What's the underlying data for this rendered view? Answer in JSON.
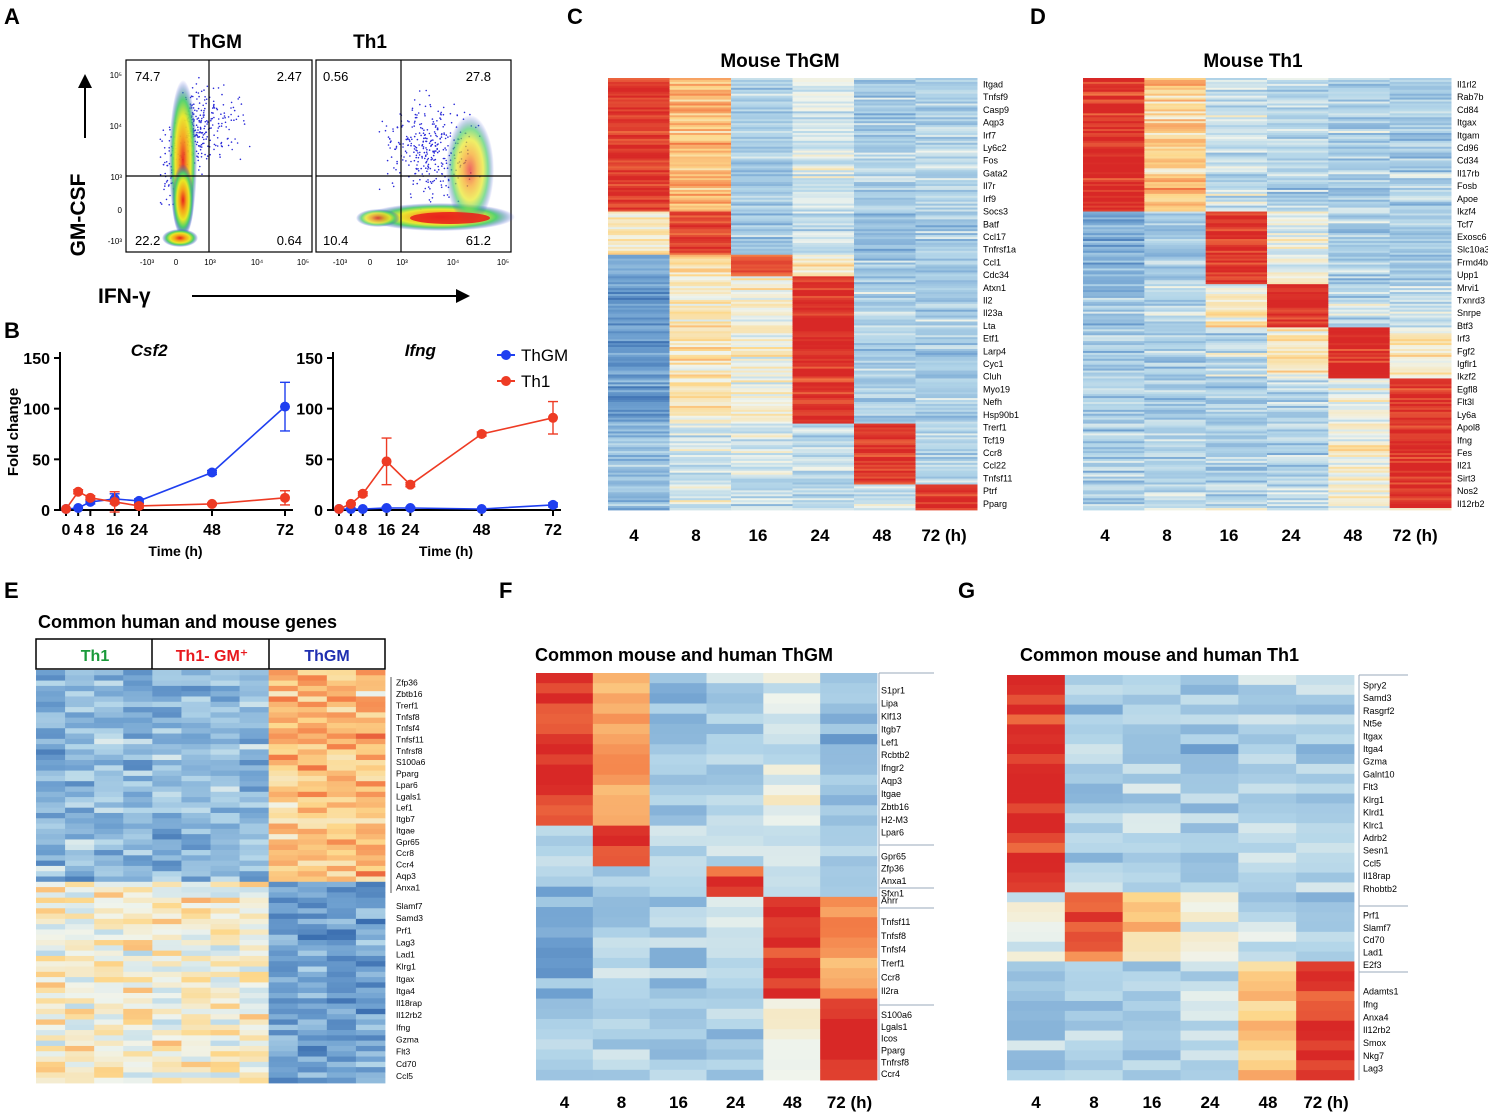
{
  "panels": {
    "A": {
      "letter": "A",
      "plots": [
        {
          "title": "ThGM",
          "q": [
            "74.7",
            "2.47",
            "22.2",
            "0.64"
          ]
        },
        {
          "title": "Th1",
          "q": [
            "0.56",
            "27.8",
            "10.4",
            "61.2"
          ]
        }
      ],
      "ylabel": "GM-CSF",
      "xlabel": "IFN-γ",
      "yticks": [
        "10⁵",
        "10⁴",
        "10³",
        "0",
        "-10³"
      ],
      "xticks": [
        "-10³",
        "0",
        "10³",
        "10⁴",
        "10⁵"
      ]
    },
    "B": {
      "letter": "B"
    },
    "C": {
      "letter": "C",
      "title": "Mouse ThGM",
      "genes": [
        "Itgad",
        "Tnfsf9",
        "Casp9",
        "Aqp3",
        "Irf7",
        "Ly6c2",
        "Fos",
        "Gata2",
        "Il7r",
        "Irf9",
        "Socs3",
        "Batf",
        "Ccl17",
        "Tnfrsf1a",
        "Ccl1",
        "Cdc34",
        "Atxn1",
        "Il2",
        "Il23a",
        "Lta",
        "Etf1",
        "Larp4",
        "Cyc1",
        "Cluh",
        "Myo19",
        "Nefh",
        "Hsp90b1",
        "Trerf1",
        "Tcf19",
        "Ccr8",
        "Ccl22",
        "Tnfsf11",
        "Ptrf",
        "Pparg"
      ],
      "xlabels": [
        "4",
        "8",
        "16",
        "24",
        "48",
        "72 (h)"
      ]
    },
    "D": {
      "letter": "D",
      "title": "Mouse Th1",
      "genes": [
        "Il1rl2",
        "Rab7b",
        "Cd84",
        "Itgax",
        "Itgam",
        "Cd96",
        "Cd34",
        "Il17rb",
        "Fosb",
        "Apoe",
        "Ikzf4",
        "Tcf7",
        "Exosc6",
        "Slc10a3",
        "Frmd4b",
        "Upp1",
        "Mrvi1",
        "Txnrd3",
        "Snrpe",
        "Btf3",
        "Irf3",
        "Fgf2",
        "Igflr1",
        "Ikzf2",
        "Egfl8",
        "Flt3l",
        "Ly6a",
        "Apol8",
        "Ifng",
        "Fes",
        "Il21",
        "Sirt3",
        "Nos2",
        "Il12rb2"
      ],
      "xlabels": [
        "4",
        "8",
        "16",
        "24",
        "48",
        "72 (h)"
      ]
    },
    "E": {
      "letter": "E",
      "title": "Common human and mouse genes",
      "groups": [
        {
          "label": "Th1",
          "color": "#1a9a3a"
        },
        {
          "label": "Th1- GM⁺",
          "color": "#e8191e"
        },
        {
          "label": "ThGM",
          "color": "#1f2fb0"
        }
      ],
      "genes_top": [
        "Zfp36",
        "Zbtb16",
        "Trerf1",
        "Tnfsf8",
        "Tnfsf4",
        "Tnfsf11",
        "Tnfrsf8",
        "S100a6",
        "Pparg",
        "Lpar6",
        "Lgals1",
        "Lef1",
        "Itgb7",
        "Itgae",
        "Gpr65",
        "Ccr8",
        "Ccr4",
        "Aqp3",
        "Anxa1"
      ],
      "genes_bottom": [
        "Slamf7",
        "Samd3",
        "Prf1",
        "Lag3",
        "Lad1",
        "Klrg1",
        "Itgax",
        "Itga4",
        "Il18rap",
        "Il12rb2",
        "Ifng",
        "Gzma",
        "Flt3",
        "Cd70",
        "Ccl5"
      ]
    },
    "F": {
      "letter": "F",
      "title": "Common mouse and human ThGM",
      "gene_groups": [
        [
          "S1pr1",
          "Lipa",
          "Klf13",
          "Itgb7",
          "Lef1",
          "Rcbtb2",
          "Ifngr2",
          "Aqp3",
          "Itgae",
          "Zbtb16",
          "H2-M3",
          "Lpar6"
        ],
        [
          "Gpr65",
          "Zfp36",
          "Anxa1"
        ],
        [
          "Sfxn1",
          "Ahrr"
        ],
        [
          "Tnfsf11",
          "Tnfsf8",
          "Tnfsf4",
          "Trerf1",
          "Ccr8",
          "Il2ra"
        ],
        [
          "S100a6",
          "Lgals1",
          "Icos",
          "Pparg",
          "Tnfrsf8",
          "Ccr4"
        ]
      ],
      "xlabels": [
        "4",
        "8",
        "16",
        "24",
        "48",
        "72 (h)"
      ]
    },
    "G": {
      "letter": "G",
      "title": "Common mouse and human Th1",
      "gene_groups": [
        [
          "Spry2",
          "Samd3",
          "Rasgrf2",
          "Nt5e",
          "Itgax",
          "Itga4",
          "Gzma",
          "Galnt10",
          "Flt3",
          "Klrg1",
          "Klrd1",
          "Klrc1",
          "Adrb2",
          "Sesn1",
          "Ccl5",
          "Il18rap",
          "Rhobtb2"
        ],
        [
          "Prf1",
          "Slamf7",
          "Cd70",
          "Lad1",
          "E2f3"
        ],
        [
          "Adamts1",
          "Ifng",
          "Anxa4",
          "Il12rb2",
          "Smox",
          "Nkg7",
          "Lag3"
        ]
      ],
      "xlabels": [
        "4",
        "8",
        "16",
        "24",
        "48",
        "72 (h)"
      ]
    }
  },
  "chart_data": [
    {
      "type": "line",
      "title": "Csf2",
      "xlabel": "Time (h)",
      "ylabel": "Fold change",
      "x": [
        0,
        4,
        8,
        16,
        24,
        48,
        72
      ],
      "xticks": [
        "0",
        "4",
        "8",
        "16",
        "24",
        "48",
        "72"
      ],
      "yticks": [
        "0",
        "50",
        "100",
        "150"
      ],
      "ylim": [
        0,
        150
      ],
      "xlim": [
        0,
        72
      ],
      "series": [
        {
          "name": "ThGM",
          "color": "#1f3ff0",
          "values": [
            1,
            2,
            8,
            11,
            9,
            37,
            102
          ],
          "errors": [
            0,
            0,
            2,
            5,
            2,
            2,
            24
          ]
        },
        {
          "name": "Th1",
          "color": "#ee3b24",
          "values": [
            1,
            18,
            12,
            8,
            4,
            6,
            12
          ],
          "errors": [
            0,
            2,
            2,
            10,
            2,
            1,
            7
          ]
        }
      ]
    },
    {
      "type": "line",
      "title": "Ifng",
      "xlabel": "Time (h)",
      "ylabel": "",
      "x": [
        0,
        4,
        8,
        16,
        24,
        48,
        72
      ],
      "xticks": [
        "0",
        "4",
        "8",
        "16",
        "24",
        "48",
        "72"
      ],
      "yticks": [
        "0",
        "50",
        "100",
        "150"
      ],
      "ylim": [
        0,
        150
      ],
      "xlim": [
        0,
        72
      ],
      "legend": "top-right",
      "series": [
        {
          "name": "ThGM",
          "color": "#1f3ff0",
          "values": [
            1,
            1,
            1,
            2,
            2,
            1,
            5
          ],
          "errors": [
            0,
            0,
            0,
            1,
            1,
            0,
            2
          ]
        },
        {
          "name": "Th1",
          "color": "#ee3b24",
          "values": [
            1,
            6,
            16,
            48,
            25,
            75,
            91
          ],
          "errors": [
            0,
            1,
            2,
            23,
            2,
            2,
            16
          ]
        }
      ]
    }
  ]
}
